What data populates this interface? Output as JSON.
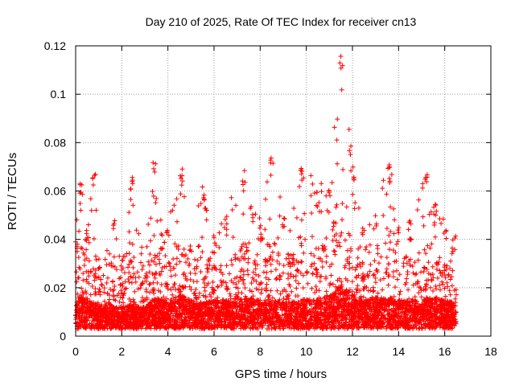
{
  "chart_data": {
    "type": "scatter",
    "title": "Day 210 of 2025, Rate Of TEC Index for receiver cn13",
    "xlabel": "GPS time / hours",
    "ylabel": "ROTI / TECUs",
    "xlim": [
      0,
      18
    ],
    "ylim": [
      0,
      0.12
    ],
    "x_ticks": [
      "0",
      "2",
      "4",
      "6",
      "8",
      "10",
      "12",
      "14",
      "16",
      "18"
    ],
    "y_ticks": [
      "0",
      "0.02",
      "0.04",
      "0.06",
      "0.08",
      "0.1",
      "0.12"
    ],
    "grid": true,
    "marker": "+",
    "marker_color": "#ff0000",
    "series": [
      {
        "name": "ROTI",
        "envelope": [
          {
            "x": 0.0,
            "typical": 0.01,
            "peak": 0.04
          },
          {
            "x": 0.2,
            "typical": 0.014,
            "peak": 0.064
          },
          {
            "x": 0.5,
            "typical": 0.012,
            "peak": 0.045
          },
          {
            "x": 0.8,
            "typical": 0.011,
            "peak": 0.07
          },
          {
            "x": 1.0,
            "typical": 0.01,
            "peak": 0.03
          },
          {
            "x": 1.5,
            "typical": 0.01,
            "peak": 0.035
          },
          {
            "x": 1.7,
            "typical": 0.009,
            "peak": 0.048
          },
          {
            "x": 2.0,
            "typical": 0.009,
            "peak": 0.033
          },
          {
            "x": 2.4,
            "typical": 0.01,
            "peak": 0.066
          },
          {
            "x": 3.0,
            "typical": 0.009,
            "peak": 0.028
          },
          {
            "x": 3.4,
            "typical": 0.013,
            "peak": 0.073
          },
          {
            "x": 3.8,
            "typical": 0.012,
            "peak": 0.04
          },
          {
            "x": 4.0,
            "typical": 0.012,
            "peak": 0.045
          },
          {
            "x": 4.6,
            "typical": 0.014,
            "peak": 0.07
          },
          {
            "x": 5.0,
            "typical": 0.012,
            "peak": 0.04
          },
          {
            "x": 5.5,
            "typical": 0.011,
            "peak": 0.06
          },
          {
            "x": 6.0,
            "typical": 0.012,
            "peak": 0.04
          },
          {
            "x": 6.5,
            "typical": 0.012,
            "peak": 0.05
          },
          {
            "x": 7.3,
            "typical": 0.013,
            "peak": 0.066
          },
          {
            "x": 8.0,
            "typical": 0.012,
            "peak": 0.045
          },
          {
            "x": 8.5,
            "typical": 0.012,
            "peak": 0.077
          },
          {
            "x": 9.0,
            "typical": 0.011,
            "peak": 0.05
          },
          {
            "x": 9.8,
            "typical": 0.012,
            "peak": 0.07
          },
          {
            "x": 10.5,
            "typical": 0.013,
            "peak": 0.06
          },
          {
            "x": 11.0,
            "typical": 0.014,
            "peak": 0.062
          },
          {
            "x": 11.5,
            "typical": 0.018,
            "peak": 0.116
          },
          {
            "x": 12.0,
            "typical": 0.014,
            "peak": 0.07
          },
          {
            "x": 12.5,
            "typical": 0.012,
            "peak": 0.045
          },
          {
            "x": 13.0,
            "typical": 0.013,
            "peak": 0.05
          },
          {
            "x": 13.6,
            "typical": 0.013,
            "peak": 0.071
          },
          {
            "x": 14.0,
            "typical": 0.012,
            "peak": 0.045
          },
          {
            "x": 14.5,
            "typical": 0.012,
            "peak": 0.05
          },
          {
            "x": 15.2,
            "typical": 0.013,
            "peak": 0.066
          },
          {
            "x": 15.6,
            "typical": 0.013,
            "peak": 0.055
          },
          {
            "x": 16.0,
            "typical": 0.012,
            "peak": 0.045
          },
          {
            "x": 16.4,
            "typical": 0.011,
            "peak": 0.04
          }
        ],
        "data_x_end": 16.5
      }
    ]
  }
}
